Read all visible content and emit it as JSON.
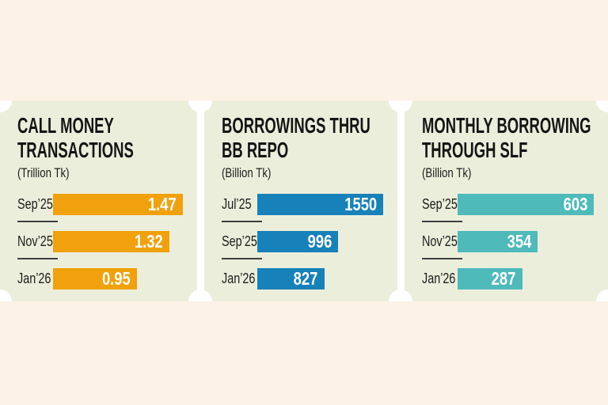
{
  "page": {
    "background": "#FDF2E6",
    "panel_background": "#ECEEDC",
    "gap_color": "#FFFFFF",
    "heading_color": "#151515",
    "value_text_color": "#FFFFFF"
  },
  "chart_data": [
    {
      "type": "bar",
      "orientation": "horizontal",
      "title": "CALL MONEY TRANSACTIONS",
      "title_lines": [
        "CALL MONEY",
        "TRANSACTIONS"
      ],
      "unit": "(Trillion Tk)",
      "categories": [
        "Sep’25",
        "Nov’25",
        "Jan’26"
      ],
      "values": [
        1.47,
        1.32,
        0.95
      ],
      "value_labels": [
        "1.47",
        "1.32",
        "0.95"
      ],
      "bar_color": "#F0A10B",
      "xlim": [
        0,
        1.47
      ],
      "grid": false,
      "value_label_position": "inside-right"
    },
    {
      "type": "bar",
      "orientation": "horizontal",
      "title": "BORROWINGS THRU BB REPO",
      "title_lines": [
        "BORROWINGS THRU",
        "BB REPO"
      ],
      "unit": "(Billion Tk)",
      "categories": [
        "Jul’25",
        "Sep’25",
        "Jan’26"
      ],
      "values": [
        1550,
        996,
        827
      ],
      "value_labels": [
        "1550",
        "996",
        "827"
      ],
      "bar_color": "#1781BA",
      "xlim": [
        0,
        1550
      ],
      "grid": false,
      "value_label_position": "inside-right"
    },
    {
      "type": "bar",
      "orientation": "horizontal",
      "title": "MONTHLY BORROWING THROUGH SLF",
      "title_lines": [
        "MONTHLY BORROWING",
        "THROUGH SLF"
      ],
      "unit": "(Billion Tk)",
      "categories": [
        "Sep’25",
        "Nov’25",
        "Jan’26"
      ],
      "values": [
        603,
        354,
        287
      ],
      "value_labels": [
        "603",
        "354",
        "287"
      ],
      "bar_color": "#4EBABA",
      "xlim": [
        0,
        603
      ],
      "grid": false,
      "value_label_position": "inside-right"
    }
  ]
}
